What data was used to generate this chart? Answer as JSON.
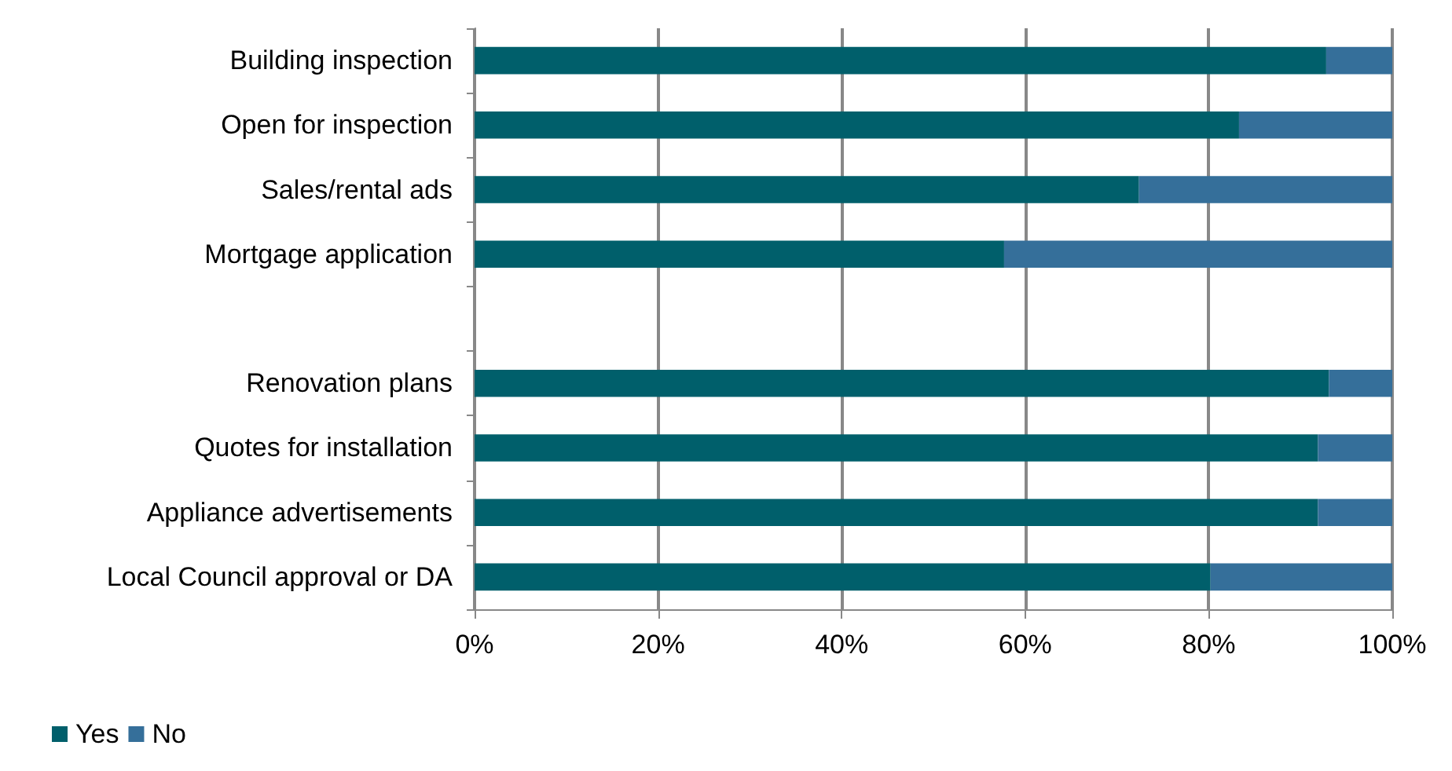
{
  "chart_data": {
    "type": "bar",
    "orientation": "horizontal",
    "stacked": true,
    "categories": [
      "Building inspection",
      "Open for inspection",
      "Sales/rental ads",
      "Mortgage application",
      null,
      "Renovation plans",
      "Quotes for installation",
      "Appliance advertisements",
      "Local Council approval or DA"
    ],
    "series": [
      {
        "name": "Yes",
        "color": "#005f6b",
        "values": [
          92.8,
          83.3,
          72.4,
          57.7,
          null,
          93.1,
          91.9,
          91.9,
          80.2
        ]
      },
      {
        "name": "No",
        "color": "#356f9a",
        "values": [
          7.2,
          16.7,
          27.6,
          42.3,
          null,
          6.9,
          8.1,
          8.1,
          19.8
        ]
      }
    ],
    "xlim": [
      0,
      100
    ],
    "xticks": [
      {
        "value": 0,
        "label": "0%"
      },
      {
        "value": 20,
        "label": "20%"
      },
      {
        "value": 40,
        "label": "40%"
      },
      {
        "value": 60,
        "label": "60%"
      },
      {
        "value": 80,
        "label": "80%"
      },
      {
        "value": 100,
        "label": "100%"
      }
    ],
    "grid": "x",
    "legend": "bottom left"
  }
}
